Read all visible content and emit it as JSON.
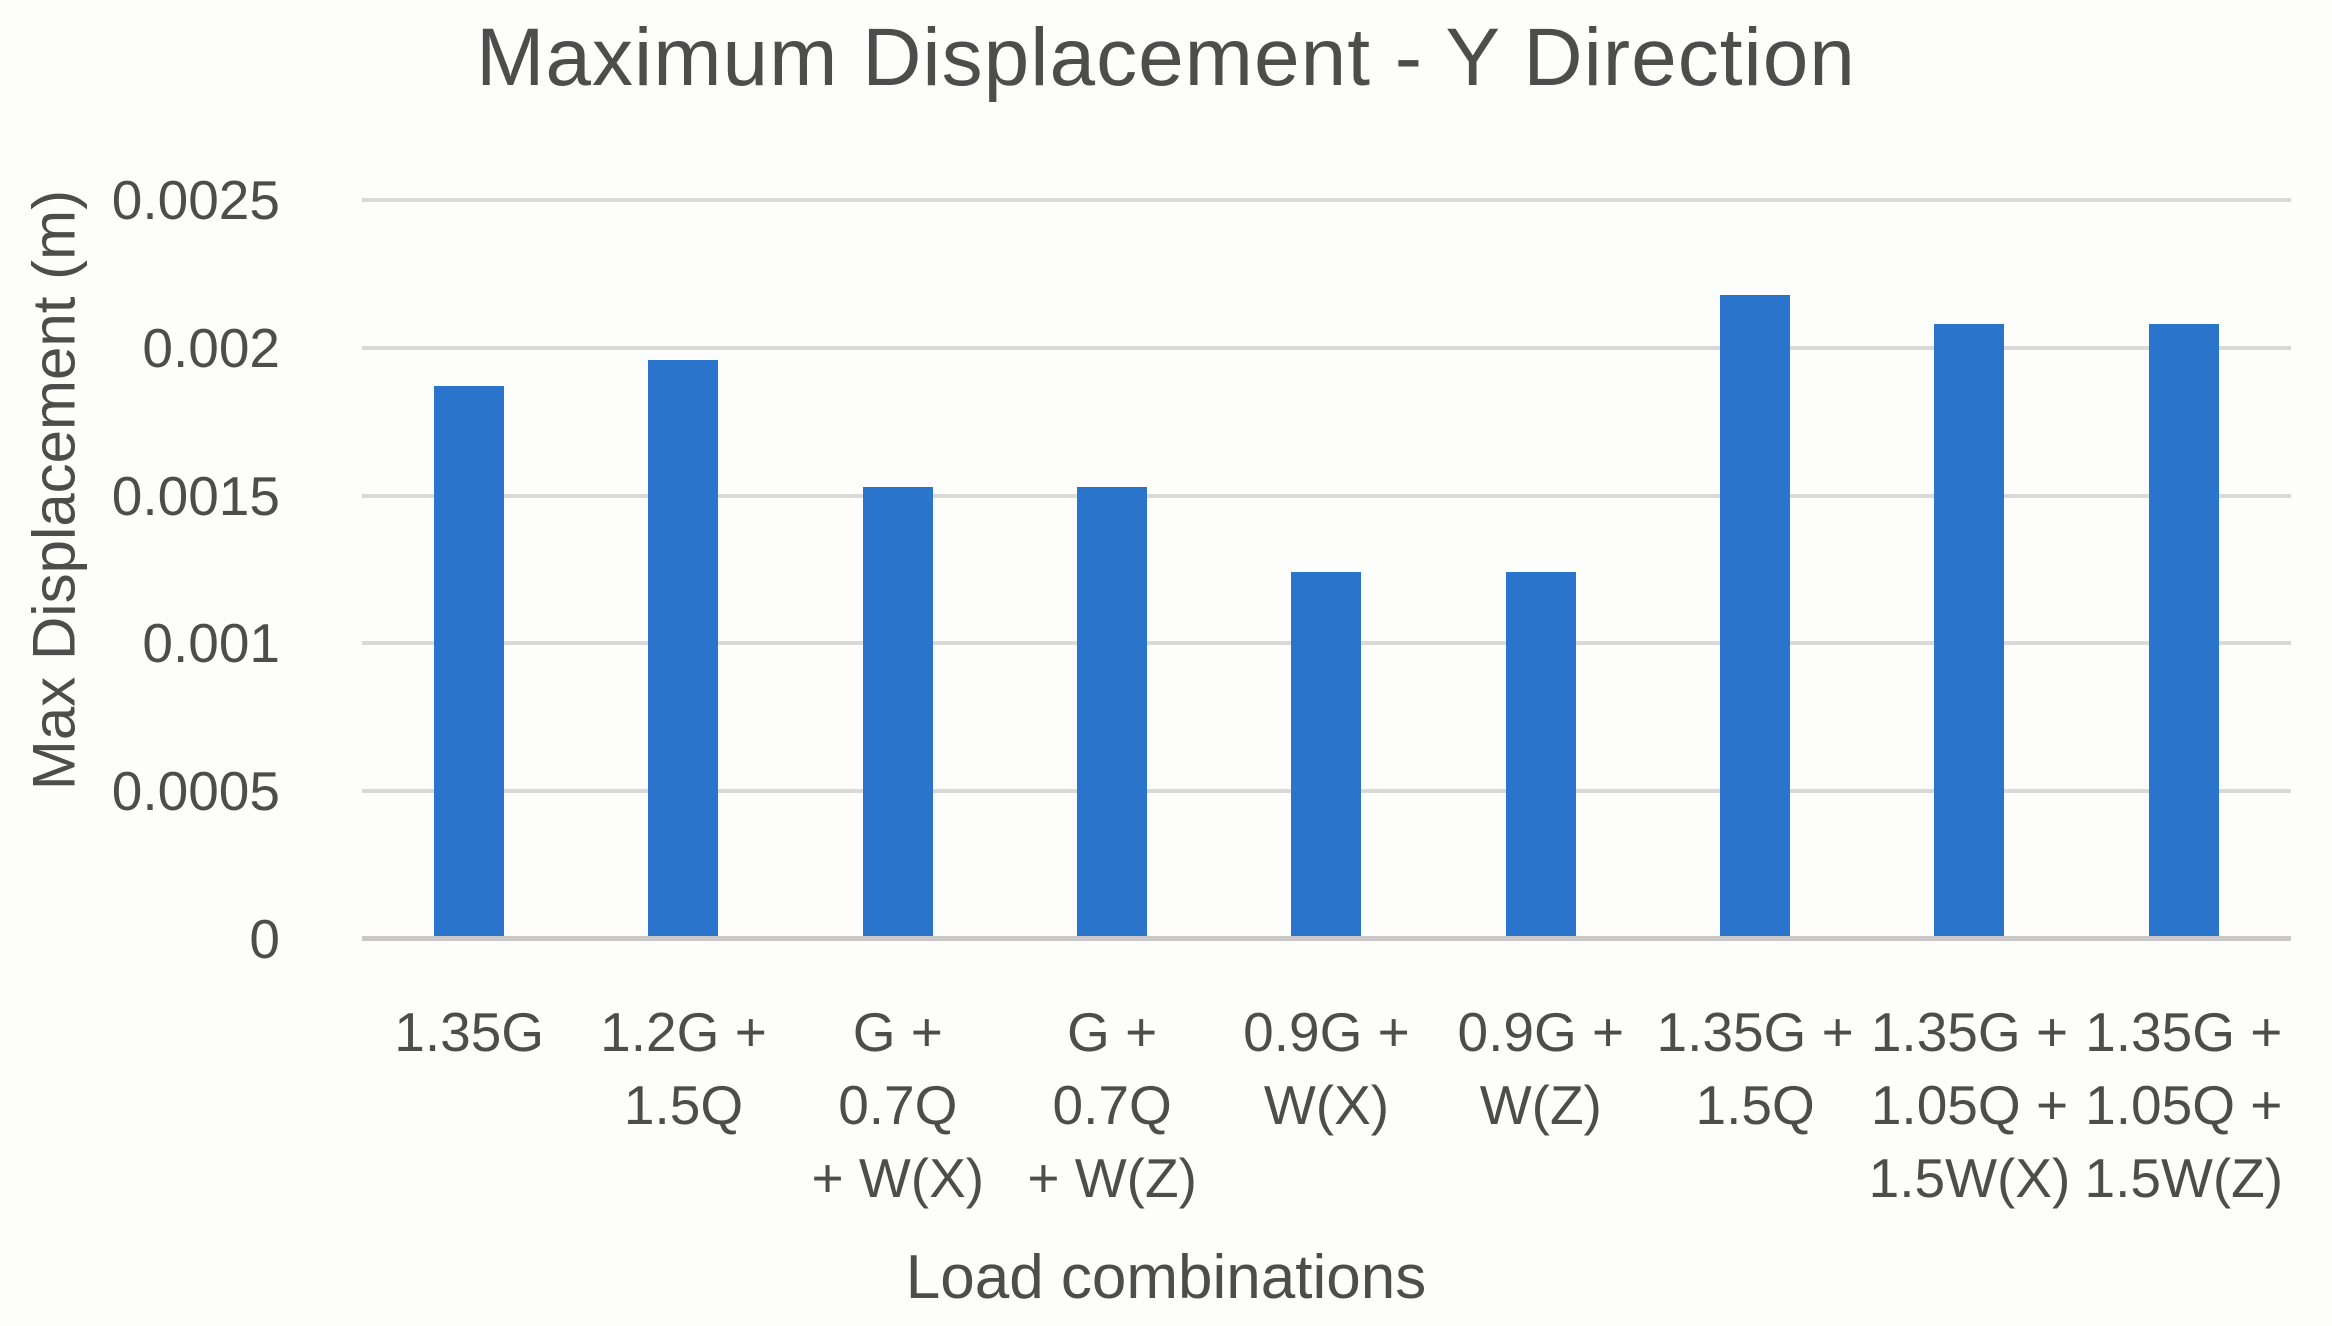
{
  "title": "Maximum Displacement - Y Direction",
  "axes": {
    "y_title": "Max Displacement (m)",
    "x_title": "Load combinations"
  },
  "colors": {
    "bar": "#2b74cc",
    "gridline": "#d9d9d9",
    "axis_line": "#c9c7c7",
    "text": "#4d4d4d",
    "title_text": "#4d4d4d",
    "background": "#fdfdfc"
  },
  "chart_data": {
    "type": "bar",
    "title": "Maximum Displacement - Y Direction",
    "xlabel": "Load combinations",
    "ylabel": "Max Displacement (m)",
    "categories": [
      "1.35G",
      "1.2G + 1.5Q",
      "G + 0.7Q + W(X)",
      "G + 0.7Q + W(Z)",
      "0.9G + W(X)",
      "0.9G + W(Z)",
      "1.35G + 1.5Q",
      "1.35G + 1.05Q + 1.5W(X)",
      "1.35G + 1.05Q + 1.5W(Z)"
    ],
    "category_display": [
      "1.35G",
      "1.2G +\n1.5Q",
      "G + 0.7Q\n+ W(X)",
      "G + 0.7Q\n+ W(Z)",
      "0.9G +\nW(X)",
      "0.9G +\nW(Z)",
      "1.35G +\n1.5Q",
      "1.35G +\n1.05Q +\n1.5W(X)",
      "1.35G +\n1.05Q +\n1.5W(Z)"
    ],
    "values": [
      0.00187,
      0.00196,
      0.00153,
      0.00153,
      0.00124,
      0.00124,
      0.00218,
      0.00208,
      0.00208
    ],
    "ylim": [
      0,
      0.0025
    ],
    "yticks": [
      0,
      0.0005,
      0.001,
      0.0015,
      0.002,
      0.0025
    ],
    "ytick_labels": [
      "0",
      "0.0005",
      "0.001",
      "0.0015",
      "0.002",
      "0.0025"
    ],
    "grid": "horizontal",
    "legend": "none"
  }
}
